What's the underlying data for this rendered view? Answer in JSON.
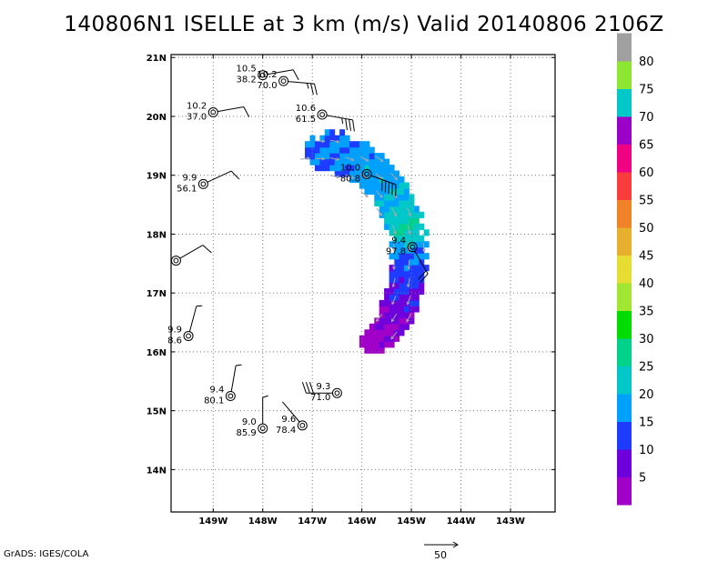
{
  "title": "140806N1  ISELLE at 3 km (m/s) Valid 20140806  2106Z",
  "credit": "GrADS: IGES/COLA",
  "chart_data": {
    "type": "heatmap",
    "title": "140806N1  ISELLE at 3 km (m/s) Valid 20140806  2106Z",
    "xlim": [
      -149.85,
      -142.1
    ],
    "ylim": [
      13.28,
      21.05
    ],
    "x_ticks": [
      {
        "v": -149,
        "label": "149W"
      },
      {
        "v": -148,
        "label": "148W"
      },
      {
        "v": -147,
        "label": "147W"
      },
      {
        "v": -146,
        "label": "146W"
      },
      {
        "v": -145,
        "label": "145W"
      },
      {
        "v": -144,
        "label": "144W"
      },
      {
        "v": -143,
        "label": "143W"
      }
    ],
    "y_ticks": [
      {
        "v": 14,
        "label": "14N"
      },
      {
        "v": 15,
        "label": "15N"
      },
      {
        "v": 16,
        "label": "16N"
      },
      {
        "v": 17,
        "label": "17N"
      },
      {
        "v": 18,
        "label": "18N"
      },
      {
        "v": 19,
        "label": "19N"
      },
      {
        "v": 20,
        "label": "20N"
      },
      {
        "v": 21,
        "label": "21N"
      }
    ],
    "grid": true,
    "colorbar": {
      "labels": [
        "5",
        "10",
        "15",
        "20",
        "25",
        "30",
        "35",
        "40",
        "45",
        "50",
        "55",
        "60",
        "65",
        "70",
        "75",
        "80"
      ],
      "colors": [
        "#a000c8",
        "#6e00dc",
        "#1e3cff",
        "#00a0ff",
        "#00c8c8",
        "#00d28c",
        "#00dc00",
        "#a0e632",
        "#e6dc32",
        "#e6af2d",
        "#f08228",
        "#fa3c3c",
        "#f00082",
        "#9b00c8",
        "#00c8c8",
        "#8ce632"
      ],
      "top_color": "#a0a0a0"
    },
    "arc": {
      "center": [
        -146.9,
        17.55
      ],
      "radius_deg": 1.8,
      "angle_start": -60,
      "angle_end": 100,
      "band_half_width": 0.35,
      "speed_stops": [
        {
          "angle": -60,
          "speed": 5
        },
        {
          "angle": -40,
          "speed": 8
        },
        {
          "angle": -25,
          "speed": 12
        },
        {
          "angle": 0,
          "speed": 18
        },
        {
          "angle": 15,
          "speed": 28
        },
        {
          "angle": 40,
          "speed": 22
        },
        {
          "angle": 70,
          "speed": 20
        },
        {
          "angle": 100,
          "speed": 17
        }
      ]
    },
    "observations": [
      {
        "lon": -148.0,
        "lat": 20.7,
        "label1": "10.5",
        "label2": "38.2",
        "barb_dir": 80,
        "barbs": [
          1
        ]
      },
      {
        "lon": -147.58,
        "lat": 20.6,
        "label1": "10.2",
        "label2": "70.0",
        "barb_dir": 95,
        "barbs": [
          1,
          1,
          0.5
        ]
      },
      {
        "lon": -149.0,
        "lat": 20.07,
        "label1": "10.2",
        "label2": "37.0",
        "barb_dir": 80,
        "barbs": [
          1
        ]
      },
      {
        "lon": -146.8,
        "lat": 20.03,
        "label1": "10.6",
        "label2": "61.5",
        "barb_dir": 100,
        "barbs": [
          1,
          1,
          1,
          0.5
        ]
      },
      {
        "lon": -149.2,
        "lat": 18.85,
        "label1": "9.9",
        "label2": "56.1",
        "barb_dir": 65,
        "barbs": [
          1
        ]
      },
      {
        "lon": -145.9,
        "lat": 19.02,
        "label1": "10.0",
        "label2": "80.8",
        "barb_dir": 110,
        "barbs": [
          1,
          1,
          1,
          1,
          1
        ]
      },
      {
        "lon": -149.75,
        "lat": 17.55,
        "label1": "",
        "label2": "",
        "barb_dir": 60,
        "barbs": [
          1
        ]
      },
      {
        "lon": -144.98,
        "lat": 17.78,
        "label1": "9.4",
        "label2": "97.8",
        "barb_dir": 150,
        "barbs": [
          1,
          1
        ]
      },
      {
        "lon": -149.5,
        "lat": 16.27,
        "label1": "9.9",
        "label2": "8.6",
        "barb_dir": 15,
        "barbs": [
          0.5
        ]
      },
      {
        "lon": -148.65,
        "lat": 15.25,
        "label1": "9.4",
        "label2": "80.1",
        "barb_dir": 10,
        "barbs": [
          0.5
        ]
      },
      {
        "lon": -148.0,
        "lat": 14.7,
        "label1": "9.0",
        "label2": "85.9",
        "barb_dir": 0,
        "barbs": [
          0.5
        ]
      },
      {
        "lon": -147.2,
        "lat": 14.75,
        "label1": "9.6",
        "label2": "78.4",
        "barb_dir": -40,
        "barbs": []
      },
      {
        "lon": -146.5,
        "lat": 15.3,
        "label1": "9.3",
        "label2": "71.0",
        "barb_dir": 270,
        "barbs": [
          1,
          1,
          1
        ]
      }
    ],
    "reference_vector": {
      "label": "50"
    }
  }
}
